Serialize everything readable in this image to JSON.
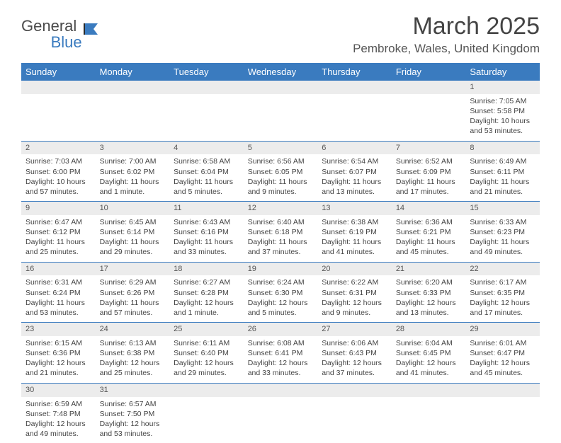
{
  "logo": {
    "part1": "General",
    "part2": "Blue"
  },
  "title": "March 2025",
  "location": "Pembroke, Wales, United Kingdom",
  "colors": {
    "header_bg": "#3a7bbf",
    "header_text": "#ffffff",
    "daynum_bg": "#ececec",
    "row_border": "#3a7bbf",
    "body_text": "#444444"
  },
  "calendar": {
    "weekdays": [
      "Sunday",
      "Monday",
      "Tuesday",
      "Wednesday",
      "Thursday",
      "Friday",
      "Saturday"
    ],
    "weeks": [
      [
        null,
        null,
        null,
        null,
        null,
        null,
        {
          "n": "1",
          "sunrise": "Sunrise: 7:05 AM",
          "sunset": "Sunset: 5:58 PM",
          "daylight": "Daylight: 10 hours and 53 minutes."
        }
      ],
      [
        {
          "n": "2",
          "sunrise": "Sunrise: 7:03 AM",
          "sunset": "Sunset: 6:00 PM",
          "daylight": "Daylight: 10 hours and 57 minutes."
        },
        {
          "n": "3",
          "sunrise": "Sunrise: 7:00 AM",
          "sunset": "Sunset: 6:02 PM",
          "daylight": "Daylight: 11 hours and 1 minute."
        },
        {
          "n": "4",
          "sunrise": "Sunrise: 6:58 AM",
          "sunset": "Sunset: 6:04 PM",
          "daylight": "Daylight: 11 hours and 5 minutes."
        },
        {
          "n": "5",
          "sunrise": "Sunrise: 6:56 AM",
          "sunset": "Sunset: 6:05 PM",
          "daylight": "Daylight: 11 hours and 9 minutes."
        },
        {
          "n": "6",
          "sunrise": "Sunrise: 6:54 AM",
          "sunset": "Sunset: 6:07 PM",
          "daylight": "Daylight: 11 hours and 13 minutes."
        },
        {
          "n": "7",
          "sunrise": "Sunrise: 6:52 AM",
          "sunset": "Sunset: 6:09 PM",
          "daylight": "Daylight: 11 hours and 17 minutes."
        },
        {
          "n": "8",
          "sunrise": "Sunrise: 6:49 AM",
          "sunset": "Sunset: 6:11 PM",
          "daylight": "Daylight: 11 hours and 21 minutes."
        }
      ],
      [
        {
          "n": "9",
          "sunrise": "Sunrise: 6:47 AM",
          "sunset": "Sunset: 6:12 PM",
          "daylight": "Daylight: 11 hours and 25 minutes."
        },
        {
          "n": "10",
          "sunrise": "Sunrise: 6:45 AM",
          "sunset": "Sunset: 6:14 PM",
          "daylight": "Daylight: 11 hours and 29 minutes."
        },
        {
          "n": "11",
          "sunrise": "Sunrise: 6:43 AM",
          "sunset": "Sunset: 6:16 PM",
          "daylight": "Daylight: 11 hours and 33 minutes."
        },
        {
          "n": "12",
          "sunrise": "Sunrise: 6:40 AM",
          "sunset": "Sunset: 6:18 PM",
          "daylight": "Daylight: 11 hours and 37 minutes."
        },
        {
          "n": "13",
          "sunrise": "Sunrise: 6:38 AM",
          "sunset": "Sunset: 6:19 PM",
          "daylight": "Daylight: 11 hours and 41 minutes."
        },
        {
          "n": "14",
          "sunrise": "Sunrise: 6:36 AM",
          "sunset": "Sunset: 6:21 PM",
          "daylight": "Daylight: 11 hours and 45 minutes."
        },
        {
          "n": "15",
          "sunrise": "Sunrise: 6:33 AM",
          "sunset": "Sunset: 6:23 PM",
          "daylight": "Daylight: 11 hours and 49 minutes."
        }
      ],
      [
        {
          "n": "16",
          "sunrise": "Sunrise: 6:31 AM",
          "sunset": "Sunset: 6:24 PM",
          "daylight": "Daylight: 11 hours and 53 minutes."
        },
        {
          "n": "17",
          "sunrise": "Sunrise: 6:29 AM",
          "sunset": "Sunset: 6:26 PM",
          "daylight": "Daylight: 11 hours and 57 minutes."
        },
        {
          "n": "18",
          "sunrise": "Sunrise: 6:27 AM",
          "sunset": "Sunset: 6:28 PM",
          "daylight": "Daylight: 12 hours and 1 minute."
        },
        {
          "n": "19",
          "sunrise": "Sunrise: 6:24 AM",
          "sunset": "Sunset: 6:30 PM",
          "daylight": "Daylight: 12 hours and 5 minutes."
        },
        {
          "n": "20",
          "sunrise": "Sunrise: 6:22 AM",
          "sunset": "Sunset: 6:31 PM",
          "daylight": "Daylight: 12 hours and 9 minutes."
        },
        {
          "n": "21",
          "sunrise": "Sunrise: 6:20 AM",
          "sunset": "Sunset: 6:33 PM",
          "daylight": "Daylight: 12 hours and 13 minutes."
        },
        {
          "n": "22",
          "sunrise": "Sunrise: 6:17 AM",
          "sunset": "Sunset: 6:35 PM",
          "daylight": "Daylight: 12 hours and 17 minutes."
        }
      ],
      [
        {
          "n": "23",
          "sunrise": "Sunrise: 6:15 AM",
          "sunset": "Sunset: 6:36 PM",
          "daylight": "Daylight: 12 hours and 21 minutes."
        },
        {
          "n": "24",
          "sunrise": "Sunrise: 6:13 AM",
          "sunset": "Sunset: 6:38 PM",
          "daylight": "Daylight: 12 hours and 25 minutes."
        },
        {
          "n": "25",
          "sunrise": "Sunrise: 6:11 AM",
          "sunset": "Sunset: 6:40 PM",
          "daylight": "Daylight: 12 hours and 29 minutes."
        },
        {
          "n": "26",
          "sunrise": "Sunrise: 6:08 AM",
          "sunset": "Sunset: 6:41 PM",
          "daylight": "Daylight: 12 hours and 33 minutes."
        },
        {
          "n": "27",
          "sunrise": "Sunrise: 6:06 AM",
          "sunset": "Sunset: 6:43 PM",
          "daylight": "Daylight: 12 hours and 37 minutes."
        },
        {
          "n": "28",
          "sunrise": "Sunrise: 6:04 AM",
          "sunset": "Sunset: 6:45 PM",
          "daylight": "Daylight: 12 hours and 41 minutes."
        },
        {
          "n": "29",
          "sunrise": "Sunrise: 6:01 AM",
          "sunset": "Sunset: 6:47 PM",
          "daylight": "Daylight: 12 hours and 45 minutes."
        }
      ],
      [
        {
          "n": "30",
          "sunrise": "Sunrise: 6:59 AM",
          "sunset": "Sunset: 7:48 PM",
          "daylight": "Daylight: 12 hours and 49 minutes."
        },
        {
          "n": "31",
          "sunrise": "Sunrise: 6:57 AM",
          "sunset": "Sunset: 7:50 PM",
          "daylight": "Daylight: 12 hours and 53 minutes."
        },
        null,
        null,
        null,
        null,
        null
      ]
    ]
  }
}
